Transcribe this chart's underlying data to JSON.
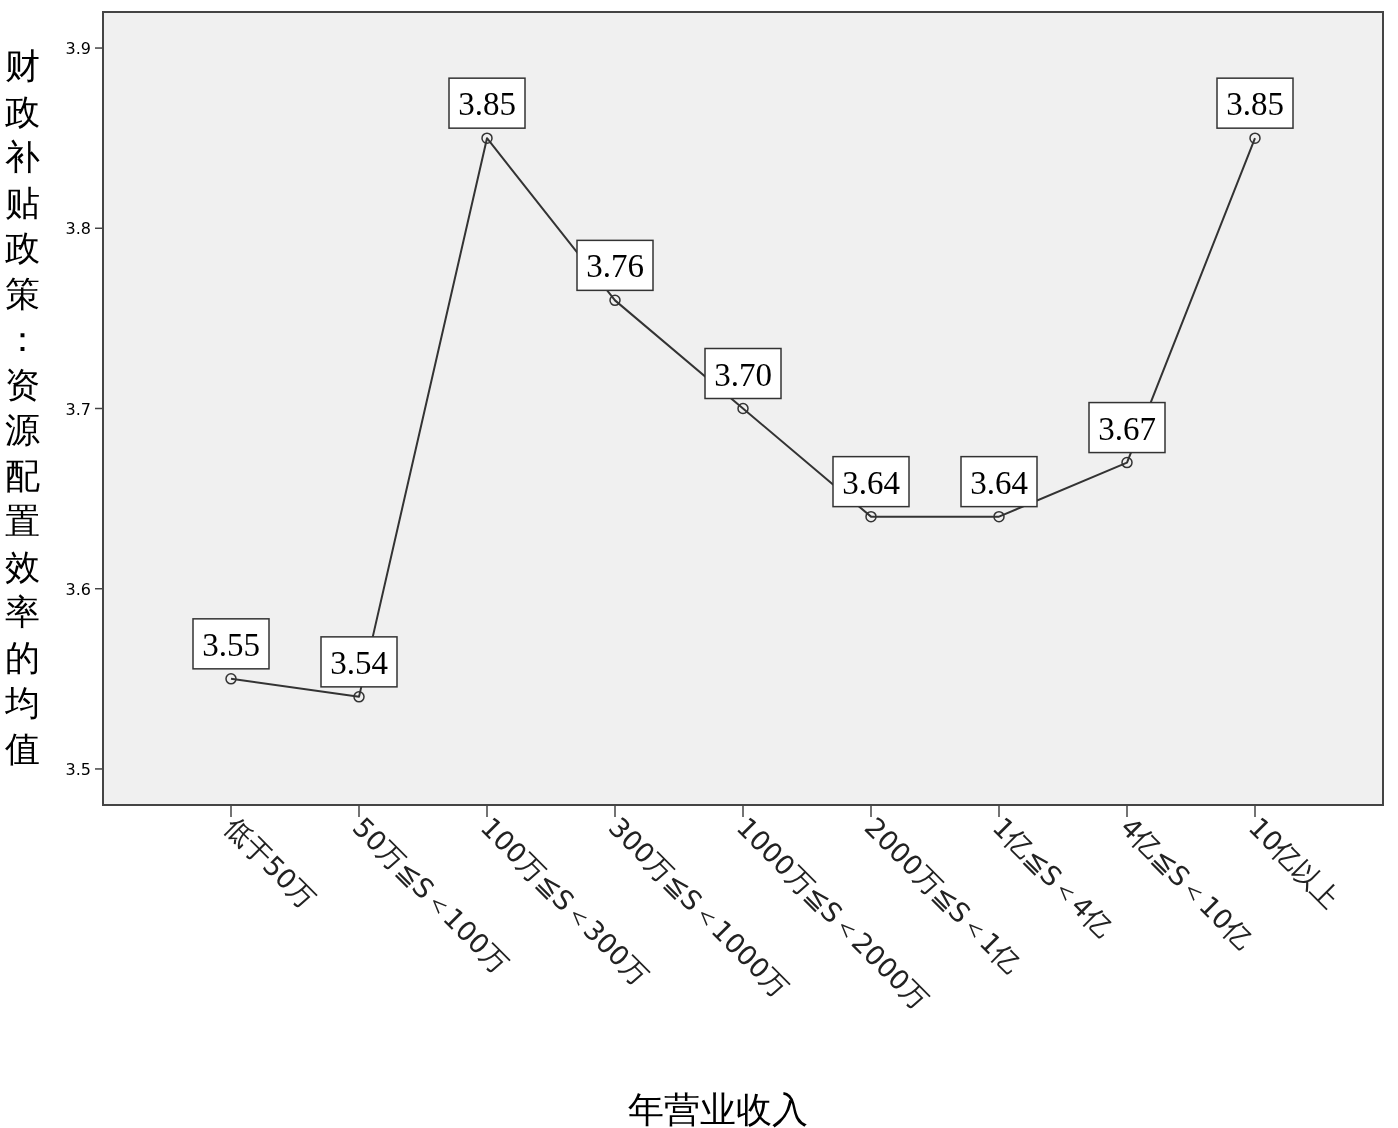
{
  "chart_data": {
    "type": "line",
    "xlabel": "年营业收入",
    "ylabel": "财政补贴政策：资源配置效率的均值",
    "categories": [
      "低于50万",
      "50万≦S＜100万",
      "100万≦S＜300万",
      "300万≦S＜1000万",
      "1000万≦S＜2000万",
      "2000万≦S＜1亿",
      "1亿≦S＜4亿",
      "4亿≦S＜10亿",
      "10亿以上"
    ],
    "series": [
      {
        "color": "#333333",
        "values": [
          3.55,
          3.54,
          3.85,
          3.76,
          3.7,
          3.64,
          3.64,
          3.67,
          3.85
        ],
        "value_labels": [
          "3.55",
          "3.54",
          "3.85",
          "3.76",
          "3.70",
          "3.64",
          "3.64",
          "3.67",
          "3.85"
        ]
      }
    ],
    "ylim": [
      3.48,
      3.92
    ],
    "yticks": [
      3.5,
      3.6,
      3.7,
      3.8,
      3.9
    ],
    "marker": "circle",
    "grid": false
  }
}
